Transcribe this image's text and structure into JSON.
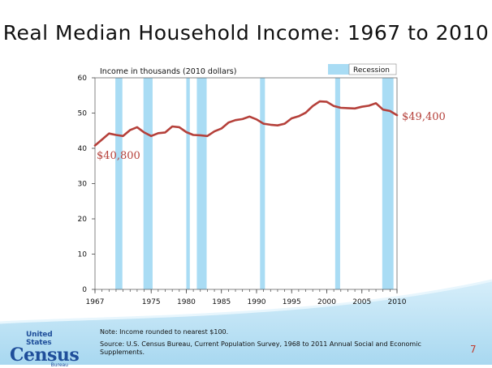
{
  "title": "Real Median Household Income: 1967 to 2010",
  "colors": {
    "line": "#b5403a",
    "recession": "#a9dcf4",
    "label": "#b5403a",
    "accent": "#1f4e9a"
  },
  "chart_data": {
    "type": "line",
    "ylabel": "Income in thousands (2010 dollars)",
    "legend": {
      "label": "Recession",
      "position": "top-right"
    },
    "ylim": [
      0,
      60
    ],
    "yticks": [
      0,
      10,
      20,
      30,
      40,
      50,
      60
    ],
    "xlim": [
      1967,
      2010
    ],
    "xtick_labels": [
      "1967",
      "1975",
      "1980",
      "1985",
      "1990",
      "1995",
      "2000",
      "2005",
      "2010"
    ],
    "xtick_values": [
      1967,
      1975,
      1980,
      1985,
      1990,
      1995,
      2000,
      2005,
      2010
    ],
    "recessions": [
      [
        1969.9,
        1970.9
      ],
      [
        1973.9,
        1975.2
      ],
      [
        1980.0,
        1980.5
      ],
      [
        1981.5,
        1982.9
      ],
      [
        1990.5,
        1991.2
      ],
      [
        2001.2,
        2001.9
      ],
      [
        2007.9,
        2009.5
      ]
    ],
    "series": [
      {
        "x": [
          1967,
          1968,
          1969,
          1970,
          1971,
          1972,
          1973,
          1974,
          1975,
          1976,
          1977,
          1978,
          1979,
          1980,
          1981,
          1982,
          1983,
          1984,
          1985,
          1986,
          1987,
          1988,
          1989,
          1990,
          1991,
          1992,
          1993,
          1994,
          1995,
          1996,
          1997,
          1998,
          1999,
          2000,
          2001,
          2002,
          2003,
          2004,
          2005,
          2006,
          2007,
          2008,
          2009,
          2010
        ],
        "y": [
          40.8,
          42.5,
          44.2,
          43.8,
          43.5,
          45.2,
          46.0,
          44.5,
          43.5,
          44.3,
          44.5,
          46.2,
          46.0,
          44.6,
          43.8,
          43.7,
          43.5,
          44.8,
          45.6,
          47.3,
          48.0,
          48.3,
          49.0,
          48.2,
          47.0,
          46.7,
          46.5,
          47.0,
          48.5,
          49.1,
          50.1,
          52.0,
          53.3,
          53.2,
          52.0,
          51.5,
          51.4,
          51.3,
          51.8,
          52.1,
          52.8,
          51.0,
          50.6,
          49.4
        ]
      }
    ],
    "annotations": [
      "$40,800",
      "$49,400"
    ]
  },
  "footer": {
    "logo_top": "United States",
    "logo_main": "Census",
    "logo_bottom": "Bureau",
    "note": "Note: Income rounded to nearest $100.",
    "source": "Source: U.S. Census Bureau, Current Population Survey, 1968 to 2011 Annual Social and Economic Supplements.",
    "page_number": "7"
  }
}
